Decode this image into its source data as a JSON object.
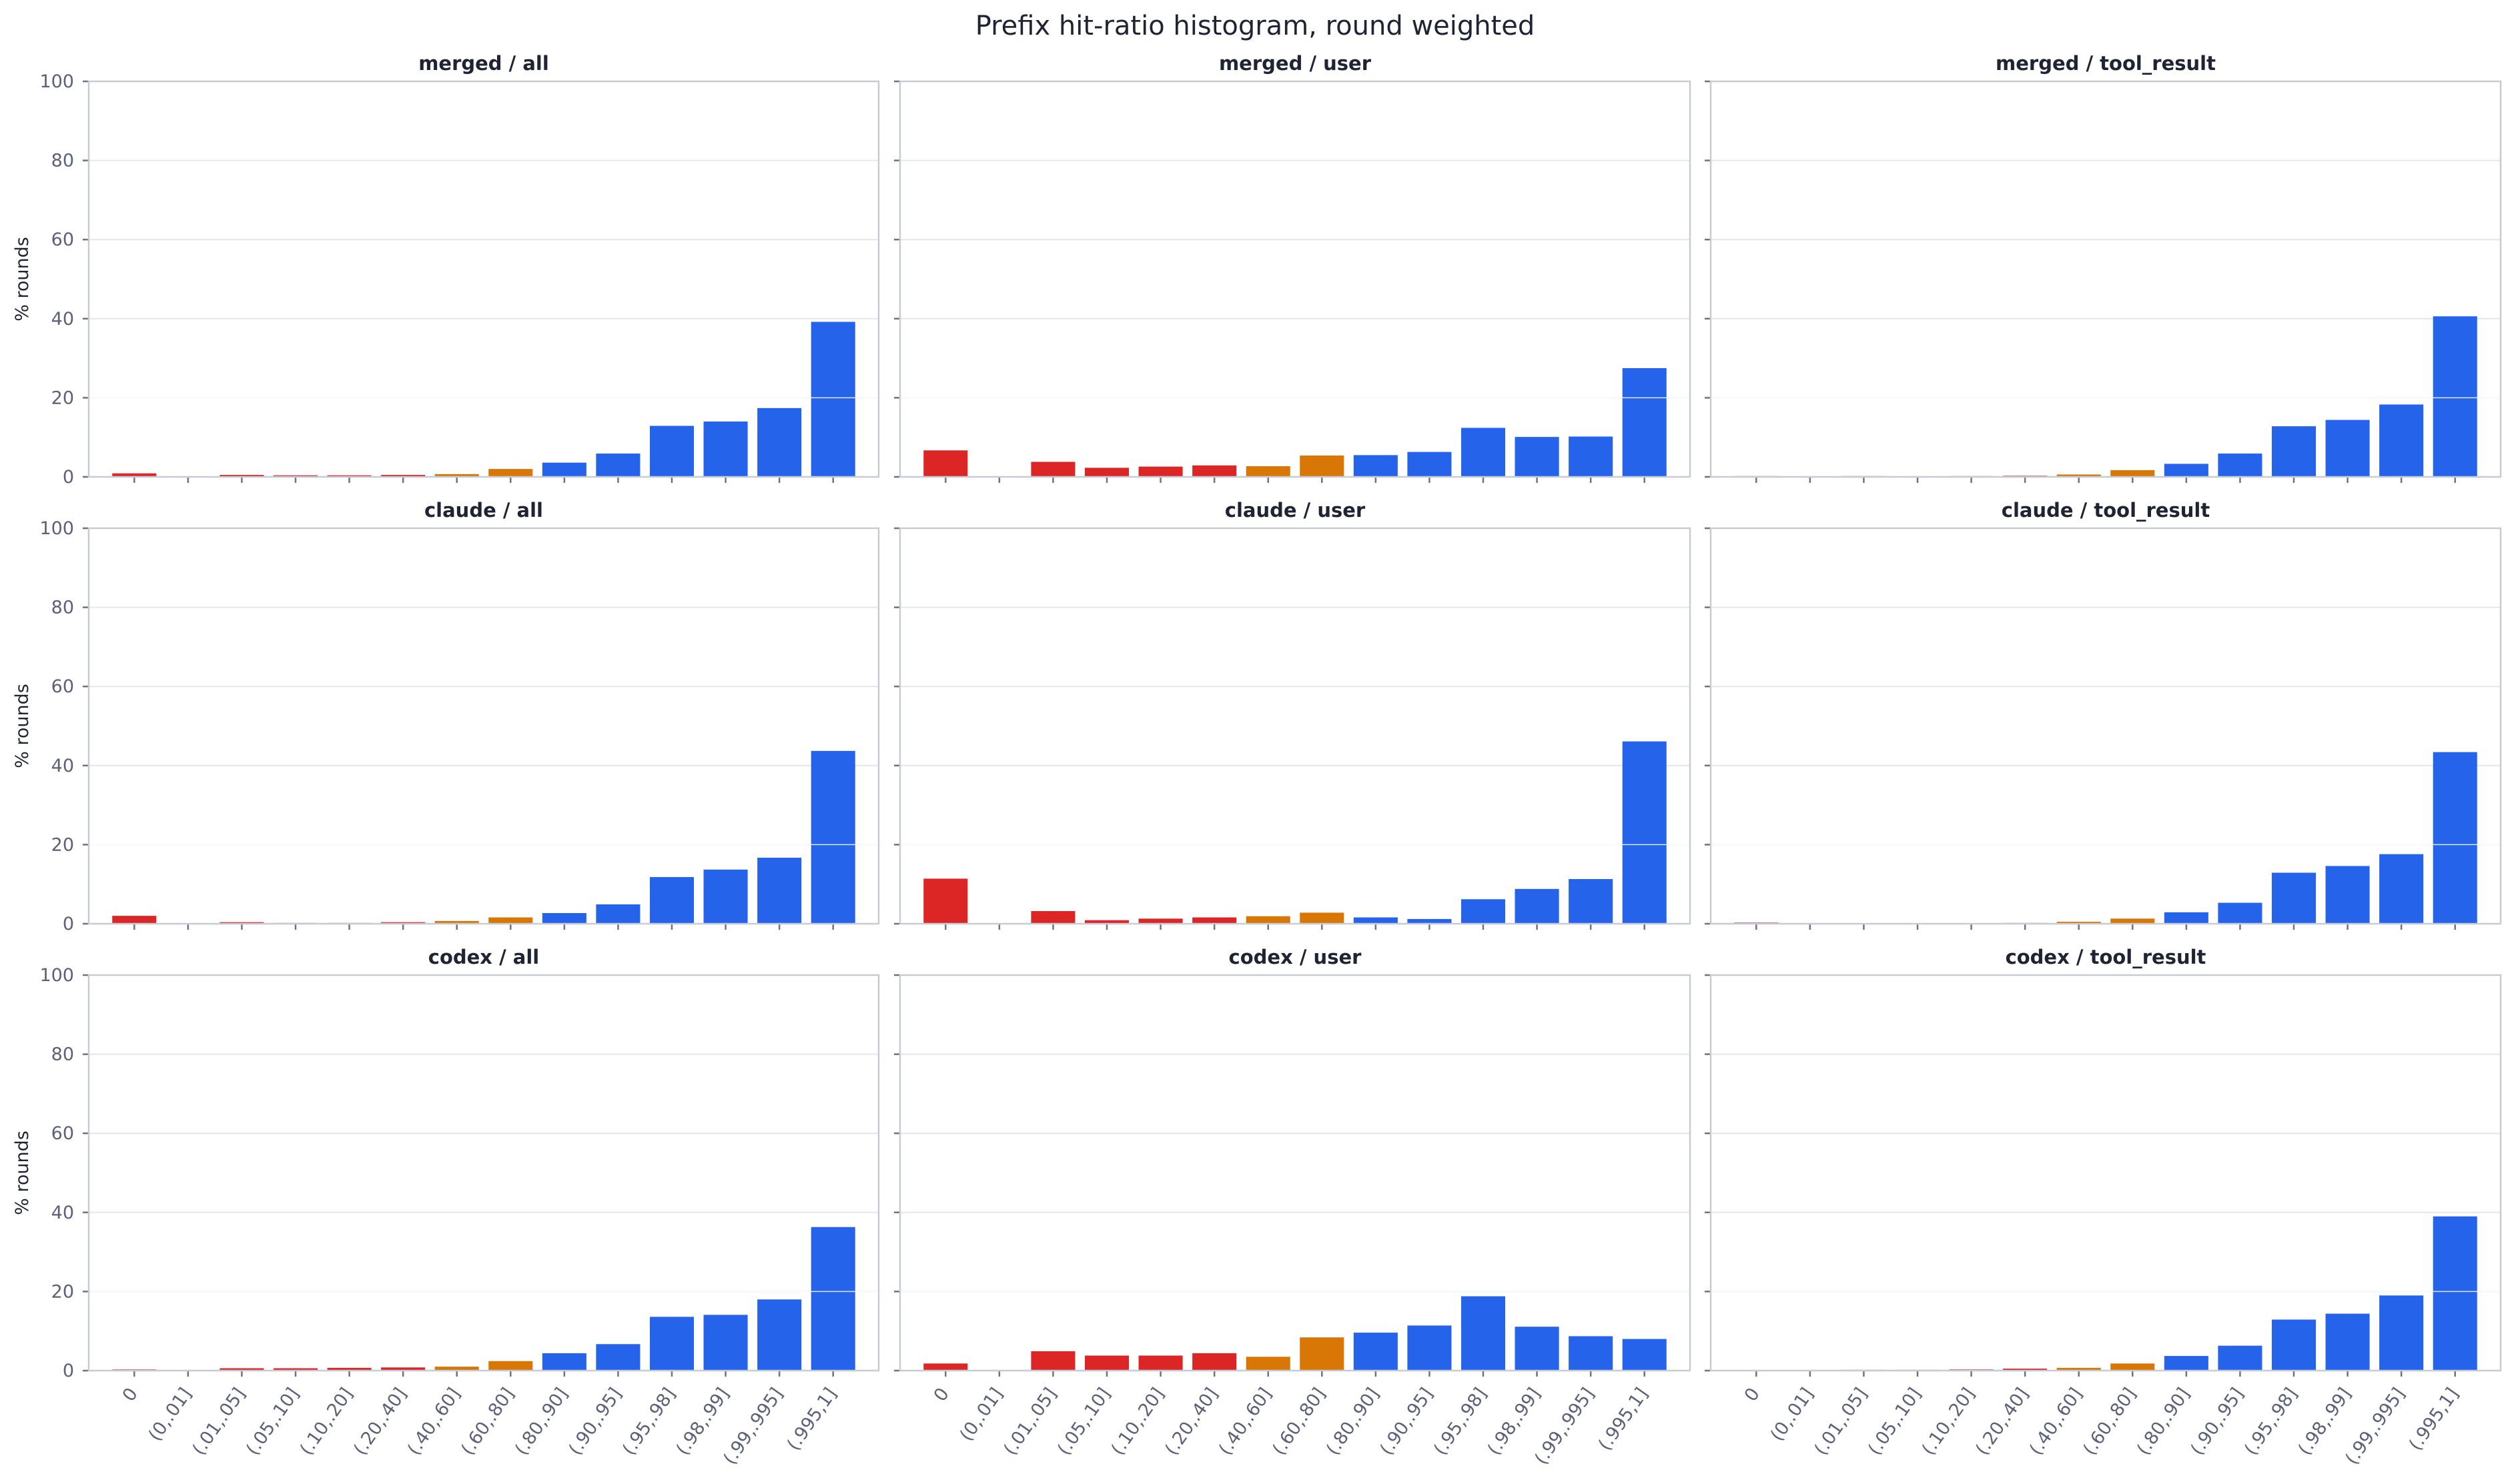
{
  "figure": {
    "title": "Prefix hit-ratio histogram, round weighted",
    "ylabel": "% rounds"
  },
  "colors": {
    "low": "#dc2626",
    "mid": "#d97706",
    "high": "#2563eb",
    "grid": "#e3e6ee",
    "frame": "#c7cbd6"
  },
  "chart_data": [
    {
      "type": "bar",
      "title": "merged / all",
      "ylim": [
        0,
        100
      ],
      "yticks": [
        0,
        20,
        40,
        60,
        80,
        100
      ],
      "categories": [
        "0",
        "(0,.01]",
        "(.01,.05]",
        "(.05,.10]",
        "(.10,.20]",
        "(.20,.40]",
        "(.40,.60]",
        "(.60,.80]",
        "(.80,.90]",
        "(.90,.95]",
        "(.95,.98]",
        "(.98,.99]",
        "(.99,.995]",
        "(.995,1]"
      ],
      "bar_colors": [
        "low",
        "low",
        "low",
        "low",
        "low",
        "low",
        "mid",
        "mid",
        "high",
        "high",
        "high",
        "high",
        "high",
        "high"
      ],
      "values": [
        0.9,
        0,
        0.5,
        0.4,
        0.4,
        0.5,
        0.7,
        2.0,
        3.6,
        5.9,
        12.9,
        14.0,
        17.4,
        39.2
      ],
      "grid": true
    },
    {
      "type": "bar",
      "title": "merged / user",
      "ylim": [
        0,
        100
      ],
      "yticks": [
        0,
        20,
        40,
        60,
        80,
        100
      ],
      "categories": [
        "0",
        "(0,.01]",
        "(.01,.05]",
        "(.05,.10]",
        "(.10,.20]",
        "(.20,.40]",
        "(.40,.60]",
        "(.60,.80]",
        "(.80,.90]",
        "(.90,.95]",
        "(.95,.98]",
        "(.98,.99]",
        "(.99,.995]",
        "(.995,1]"
      ],
      "bar_colors": [
        "low",
        "low",
        "low",
        "low",
        "low",
        "low",
        "mid",
        "mid",
        "high",
        "high",
        "high",
        "high",
        "high",
        "high"
      ],
      "values": [
        6.7,
        0,
        3.8,
        2.3,
        2.6,
        2.9,
        2.7,
        5.4,
        5.5,
        6.3,
        12.4,
        10.1,
        10.2,
        27.5
      ],
      "grid": true
    },
    {
      "type": "bar",
      "title": "merged / tool_result",
      "ylim": [
        0,
        100
      ],
      "yticks": [
        0,
        20,
        40,
        60,
        80,
        100
      ],
      "categories": [
        "0",
        "(0,.01]",
        "(.01,.05]",
        "(.05,.10]",
        "(.10,.20]",
        "(.20,.40]",
        "(.40,.60]",
        "(.60,.80]",
        "(.80,.90]",
        "(.90,.95]",
        "(.95,.98]",
        "(.98,.99]",
        "(.99,.995]",
        "(.995,1]"
      ],
      "bar_colors": [
        "low",
        "low",
        "low",
        "low",
        "low",
        "low",
        "mid",
        "mid",
        "high",
        "high",
        "high",
        "high",
        "high",
        "high"
      ],
      "values": [
        0.2,
        0,
        0.2,
        0.1,
        0.2,
        0.3,
        0.6,
        1.7,
        3.3,
        5.9,
        12.8,
        14.4,
        18.3,
        40.6
      ],
      "grid": true
    },
    {
      "type": "bar",
      "title": "claude / all",
      "ylim": [
        0,
        100
      ],
      "yticks": [
        0,
        20,
        40,
        60,
        80,
        100
      ],
      "categories": [
        "0",
        "(0,.01]",
        "(.01,.05]",
        "(.05,.10]",
        "(.10,.20]",
        "(.20,.40]",
        "(.40,.60]",
        "(.60,.80]",
        "(.80,.90]",
        "(.90,.95]",
        "(.95,.98]",
        "(.98,.99]",
        "(.99,.995]",
        "(.995,1]"
      ],
      "bar_colors": [
        "low",
        "low",
        "low",
        "low",
        "low",
        "low",
        "mid",
        "mid",
        "high",
        "high",
        "high",
        "high",
        "high",
        "high"
      ],
      "values": [
        2.0,
        0,
        0.4,
        0.2,
        0.2,
        0.4,
        0.7,
        1.6,
        2.7,
        4.9,
        11.8,
        13.7,
        16.7,
        43.7
      ],
      "grid": true
    },
    {
      "type": "bar",
      "title": "claude / user",
      "ylim": [
        0,
        100
      ],
      "yticks": [
        0,
        20,
        40,
        60,
        80,
        100
      ],
      "categories": [
        "0",
        "(0,.01]",
        "(.01,.05]",
        "(.05,.10]",
        "(.10,.20]",
        "(.20,.40]",
        "(.40,.60]",
        "(.60,.80]",
        "(.80,.90]",
        "(.90,.95]",
        "(.95,.98]",
        "(.98,.99]",
        "(.99,.995]",
        "(.995,1]"
      ],
      "bar_colors": [
        "low",
        "low",
        "low",
        "low",
        "low",
        "low",
        "mid",
        "mid",
        "high",
        "high",
        "high",
        "high",
        "high",
        "high"
      ],
      "values": [
        11.4,
        0,
        3.2,
        0.9,
        1.3,
        1.6,
        1.9,
        2.8,
        1.6,
        1.2,
        6.2,
        8.8,
        11.3,
        46.1
      ],
      "grid": true
    },
    {
      "type": "bar",
      "title": "claude / tool_result",
      "ylim": [
        0,
        100
      ],
      "yticks": [
        0,
        20,
        40,
        60,
        80,
        100
      ],
      "categories": [
        "0",
        "(0,.01]",
        "(.01,.05]",
        "(.05,.10]",
        "(.10,.20]",
        "(.20,.40]",
        "(.40,.60]",
        "(.60,.80]",
        "(.80,.90]",
        "(.90,.95]",
        "(.95,.98]",
        "(.98,.99]",
        "(.99,.995]",
        "(.995,1]"
      ],
      "bar_colors": [
        "low",
        "low",
        "low",
        "low",
        "low",
        "low",
        "mid",
        "mid",
        "high",
        "high",
        "high",
        "high",
        "high",
        "high"
      ],
      "values": [
        0.3,
        0,
        0.1,
        0.1,
        0.1,
        0.2,
        0.5,
        1.3,
        2.9,
        5.3,
        12.9,
        14.6,
        17.6,
        43.4
      ],
      "grid": true
    },
    {
      "type": "bar",
      "title": "codex / all",
      "ylim": [
        0,
        100
      ],
      "yticks": [
        0,
        20,
        40,
        60,
        80,
        100
      ],
      "categories": [
        "0",
        "(0,.01]",
        "(.01,.05]",
        "(.05,.10]",
        "(.10,.20]",
        "(.20,.40]",
        "(.40,.60]",
        "(.60,.80]",
        "(.80,.90]",
        "(.90,.95]",
        "(.95,.98]",
        "(.98,.99]",
        "(.99,.995]",
        "(.995,1]"
      ],
      "bar_colors": [
        "low",
        "low",
        "low",
        "low",
        "low",
        "low",
        "mid",
        "mid",
        "high",
        "high",
        "high",
        "high",
        "high",
        "high"
      ],
      "values": [
        0.3,
        0,
        0.6,
        0.6,
        0.7,
        0.8,
        1.0,
        2.4,
        4.4,
        6.7,
        13.6,
        14.1,
        18.0,
        36.3
      ],
      "grid": true
    },
    {
      "type": "bar",
      "title": "codex / user",
      "ylim": [
        0,
        100
      ],
      "yticks": [
        0,
        20,
        40,
        60,
        80,
        100
      ],
      "categories": [
        "0",
        "(0,.01]",
        "(.01,.05]",
        "(.05,.10]",
        "(.10,.20]",
        "(.20,.40]",
        "(.40,.60]",
        "(.60,.80]",
        "(.80,.90]",
        "(.90,.95]",
        "(.95,.98]",
        "(.98,.99]",
        "(.99,.995]",
        "(.995,1]"
      ],
      "bar_colors": [
        "low",
        "low",
        "low",
        "low",
        "low",
        "low",
        "mid",
        "mid",
        "high",
        "high",
        "high",
        "high",
        "high",
        "high"
      ],
      "values": [
        1.8,
        0,
        4.9,
        3.8,
        3.8,
        4.4,
        3.5,
        8.4,
        9.6,
        11.4,
        18.8,
        11.1,
        8.7,
        8.0
      ],
      "grid": true
    },
    {
      "type": "bar",
      "title": "codex / tool_result",
      "ylim": [
        0,
        100
      ],
      "yticks": [
        0,
        20,
        40,
        60,
        80,
        100
      ],
      "categories": [
        "0",
        "(0,.01]",
        "(.01,.05]",
        "(.05,.10]",
        "(.10,.20]",
        "(.20,.40]",
        "(.40,.60]",
        "(.60,.80]",
        "(.80,.90]",
        "(.90,.95]",
        "(.95,.98]",
        "(.98,.99]",
        "(.99,.995]",
        "(.995,1]"
      ],
      "bar_colors": [
        "low",
        "low",
        "low",
        "low",
        "low",
        "low",
        "mid",
        "mid",
        "high",
        "high",
        "high",
        "high",
        "high",
        "high"
      ],
      "values": [
        0.1,
        0,
        0.2,
        0.2,
        0.3,
        0.5,
        0.7,
        1.8,
        3.7,
        6.3,
        12.9,
        14.4,
        19.0,
        39.0
      ],
      "grid": true
    }
  ]
}
